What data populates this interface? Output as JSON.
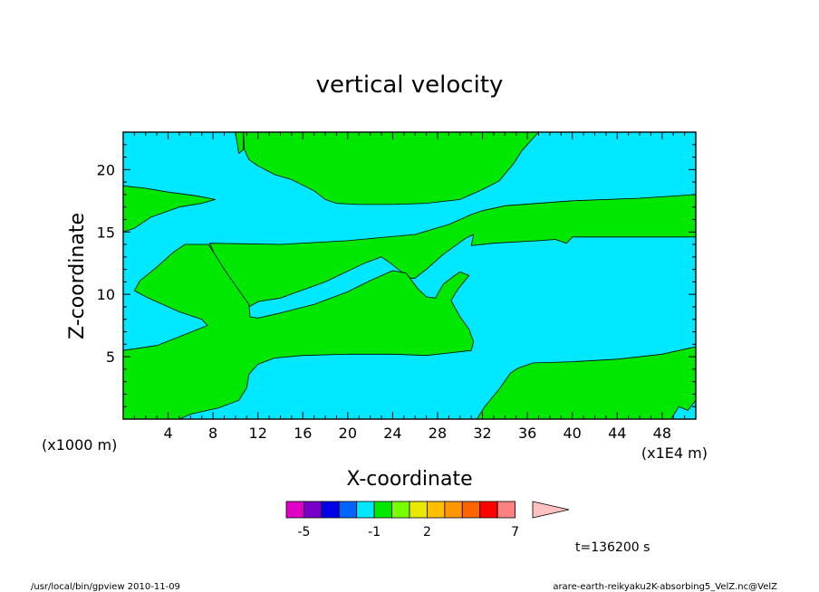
{
  "chart_data": {
    "type": "heatmap",
    "title": "vertical velocity",
    "xlabel": "X-coordinate",
    "ylabel": "Z-coordinate",
    "x_unit_left": "(x1000 m)",
    "x_unit_right": "(x1E4 m)",
    "xlim": [
      0,
      51
    ],
    "ylim": [
      0,
      23
    ],
    "x_ticks": [
      4,
      8,
      12,
      16,
      20,
      24,
      28,
      32,
      36,
      40,
      44,
      48
    ],
    "y_ticks": [
      5,
      10,
      15,
      20
    ],
    "background_class": {
      "range": "-1 to 0",
      "color": "#00e8ff"
    },
    "regions": [
      {
        "class": "0 to 1",
        "color": "#00e800",
        "points": [
          [
            10.0,
            23
          ],
          [
            10.3,
            21.3
          ],
          [
            10.7,
            21.6
          ],
          [
            10.7,
            23
          ]
        ]
      },
      {
        "class": "0 to 1",
        "color": "#00e800",
        "points": [
          [
            10.7,
            23
          ],
          [
            10.8,
            21.6
          ],
          [
            11.2,
            20.8
          ],
          [
            12,
            20.3
          ],
          [
            13.5,
            19.6
          ],
          [
            15,
            19.2
          ],
          [
            17,
            18.3
          ],
          [
            18,
            17.6
          ],
          [
            19,
            17.3
          ],
          [
            21,
            17.2
          ],
          [
            24,
            17.2
          ],
          [
            27,
            17.3
          ],
          [
            30,
            17.6
          ],
          [
            32,
            18.4
          ],
          [
            33.5,
            19.1
          ],
          [
            34.8,
            20.5
          ],
          [
            35.5,
            21.5
          ],
          [
            36.5,
            22.5
          ],
          [
            37,
            23
          ]
        ]
      },
      {
        "class": "0 to 1",
        "color": "#00e800",
        "points": [
          [
            0,
            18.7
          ],
          [
            2,
            18.5
          ],
          [
            4,
            18.2
          ],
          [
            6.5,
            17.9
          ],
          [
            8.2,
            17.6
          ],
          [
            7,
            17.3
          ],
          [
            5,
            17.0
          ],
          [
            2.5,
            16.2
          ],
          [
            1,
            15.3
          ],
          [
            0,
            15.0
          ]
        ]
      },
      {
        "class": "0 to 1",
        "color": "#00e800",
        "points": [
          [
            7.7,
            14.1
          ],
          [
            14,
            14.0
          ],
          [
            20,
            14.3
          ],
          [
            26,
            14.8
          ],
          [
            29,
            15.6
          ],
          [
            31,
            16.4
          ],
          [
            32,
            16.7
          ],
          [
            34,
            17.1
          ],
          [
            40,
            17.5
          ],
          [
            46,
            17.7
          ],
          [
            51,
            18.0
          ],
          [
            51,
            14.6
          ],
          [
            45,
            14.6
          ],
          [
            40,
            14.6
          ],
          [
            39.5,
            14.1
          ],
          [
            38.5,
            14.4
          ],
          [
            37,
            14.3
          ],
          [
            33,
            14.1
          ],
          [
            31,
            13.9
          ],
          [
            31.2,
            14.8
          ],
          [
            30.5,
            14.5
          ],
          [
            28.5,
            13.2
          ],
          [
            27,
            12.0
          ],
          [
            26,
            11.3
          ],
          [
            25.5,
            11.3
          ],
          [
            23.8,
            12.5
          ],
          [
            23,
            13.0
          ],
          [
            21.5,
            12.5
          ],
          [
            18,
            11.0
          ],
          [
            14,
            9.7
          ],
          [
            12.5,
            9.5
          ],
          [
            12,
            9.4
          ],
          [
            11.2,
            9.0
          ],
          [
            10.8,
            9.5
          ],
          [
            9.5,
            11.2
          ],
          [
            8.5,
            12.5
          ]
        ]
      },
      {
        "class": "0 to 1",
        "color": "#00e800",
        "points": [
          [
            0,
            5.5
          ],
          [
            3,
            5.9
          ],
          [
            5,
            6.6
          ],
          [
            7.5,
            7.5
          ],
          [
            7,
            8.0
          ],
          [
            5,
            8.6
          ],
          [
            2,
            9.8
          ],
          [
            1,
            10.3
          ],
          [
            1.5,
            11.1
          ],
          [
            3,
            12.2
          ],
          [
            4.5,
            13.4
          ],
          [
            5.5,
            14.0
          ],
          [
            7.6,
            14.0
          ],
          [
            9,
            12.0
          ],
          [
            10.8,
            9.7
          ],
          [
            11.2,
            9.2
          ],
          [
            11.3,
            8.2
          ],
          [
            12,
            8.1
          ],
          [
            14,
            8.5
          ],
          [
            17,
            9.2
          ],
          [
            20,
            10.2
          ],
          [
            22,
            11.1
          ],
          [
            24,
            11.9
          ],
          [
            25.2,
            11.7
          ],
          [
            26.2,
            10.5
          ],
          [
            27,
            9.8
          ],
          [
            27.8,
            9.7
          ],
          [
            28.5,
            10.8
          ],
          [
            29.5,
            11.5
          ],
          [
            30,
            11.8
          ],
          [
            30.8,
            11.5
          ],
          [
            29.8,
            10.4
          ],
          [
            29.2,
            9.5
          ],
          [
            30,
            8.2
          ],
          [
            30.8,
            7.2
          ],
          [
            31.2,
            6.2
          ],
          [
            31,
            5.5
          ],
          [
            29,
            5.3
          ],
          [
            27,
            5.1
          ],
          [
            24,
            5.2
          ],
          [
            20,
            5.2
          ],
          [
            16,
            5.1
          ],
          [
            13.5,
            4.9
          ],
          [
            12,
            4.4
          ],
          [
            11.2,
            3.6
          ],
          [
            11,
            2.5
          ],
          [
            10.3,
            1.5
          ],
          [
            8.5,
            0.9
          ],
          [
            6,
            0.4
          ],
          [
            5,
            0
          ],
          [
            0,
            0
          ]
        ]
      },
      {
        "class": "0 to 1",
        "color": "#00e800",
        "points": [
          [
            31.5,
            0
          ],
          [
            32.2,
            1.0
          ],
          [
            33.5,
            2.4
          ],
          [
            34.5,
            3.7
          ],
          [
            35.2,
            4.1
          ],
          [
            36.5,
            4.5
          ],
          [
            40,
            4.6
          ],
          [
            44,
            4.8
          ],
          [
            48,
            5.2
          ],
          [
            51,
            5.8
          ],
          [
            51,
            1.5
          ],
          [
            50.3,
            0.7
          ],
          [
            49.5,
            1.0
          ],
          [
            48.8,
            0
          ]
        ]
      }
    ],
    "colorbar_boundaries": [
      -5,
      -1,
      2,
      7
    ],
    "colorbar_colors": [
      "#e000c8",
      "#7800c8",
      "#0000e8",
      "#0064ff",
      "#00e8ff",
      "#00e800",
      "#78ff00",
      "#e8e800",
      "#ffbe00",
      "#ff9600",
      "#ff6400",
      "#ff0000",
      "#ff8080",
      "#ffc0c0"
    ],
    "time_label": "t=136200 s"
  },
  "footer": {
    "left": "/usr/local/bin/gpview 2010-11-09",
    "right": "arare-earth-reikyaku2K-absorbing5_VelZ.nc@VelZ"
  }
}
